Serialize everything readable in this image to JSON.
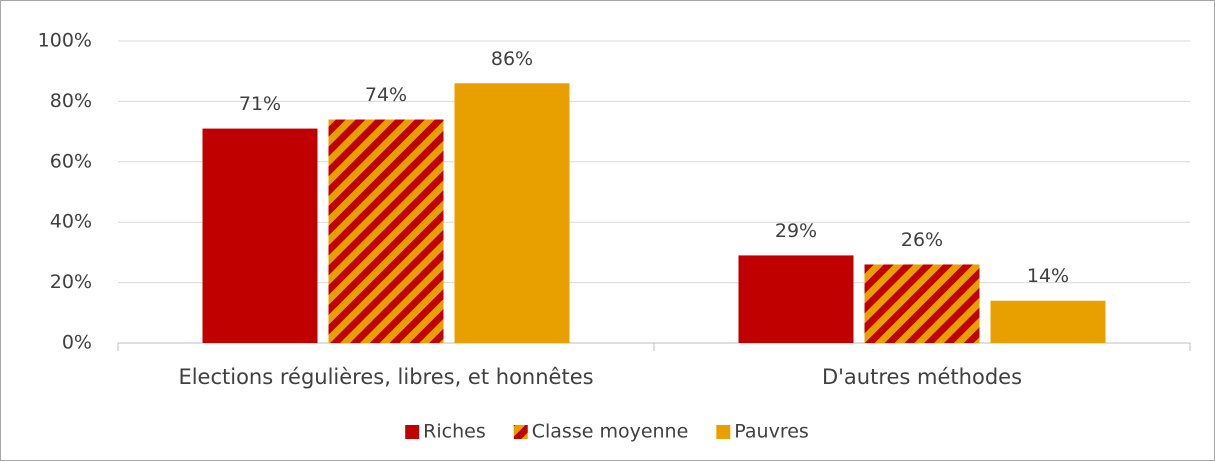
{
  "chart_data": {
    "type": "bar",
    "categories": [
      "Elections régulières, libres, et honnêtes",
      "D'autres méthodes"
    ],
    "series": [
      {
        "name": "Riches",
        "color": "#c00000",
        "values": [
          71,
          29
        ],
        "value_labels": [
          "71%",
          "29%"
        ]
      },
      {
        "name": "Classe moyenne",
        "color": "#c00000",
        "hatch_color": "#e8a000",
        "values": [
          74,
          26
        ],
        "value_labels": [
          "74%",
          "26%"
        ]
      },
      {
        "name": "Pauvres",
        "color": "#e8a000",
        "values": [
          86,
          14
        ],
        "value_labels": [
          "86%",
          "14%"
        ]
      }
    ],
    "ylim": [
      0,
      100
    ],
    "yticks": [
      {
        "value": 0,
        "label": "0%"
      },
      {
        "value": 20,
        "label": "20%"
      },
      {
        "value": 40,
        "label": "40%"
      },
      {
        "value": 60,
        "label": "60%"
      },
      {
        "value": 80,
        "label": "80%"
      },
      {
        "value": 100,
        "label": "100%"
      }
    ],
    "grid": true,
    "legend": "bottom"
  }
}
